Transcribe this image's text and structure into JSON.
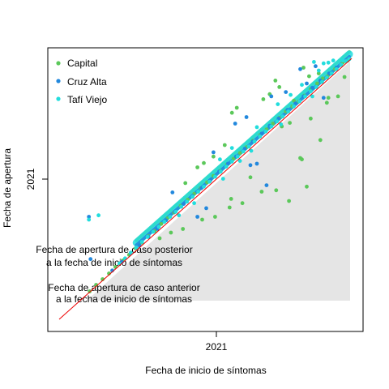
{
  "chart_data": {
    "type": "scatter",
    "title": "",
    "xlabel": "Fecha de inicio de síntomas",
    "ylabel": "Fecha de apertura",
    "x_tick_labels": [
      "2021"
    ],
    "y_tick_labels": [
      "2021"
    ],
    "xlim": [
      "2020-06-01",
      "2021-05-31"
    ],
    "ylim": [
      "2020-06-01",
      "2021-05-31"
    ],
    "x_ticks": [
      "2021-01-01"
    ],
    "y_ticks": [
      "2021-01-01"
    ],
    "legend_position": "top-left",
    "reference_line": {
      "label": "",
      "color": "#ee0000",
      "from": [
        "2020-06-01",
        "2020-06-01"
      ],
      "to": [
        "2021-05-31",
        "2021-05-31"
      ]
    },
    "shaded_region": {
      "color": "#e5e5e5",
      "description_labels": [
        "Fecha de apertura de caso anterior",
        "a la fecha de inicio de síntomas"
      ]
    },
    "annotation_upper": [
      "Fecha de apertura de caso posterior",
      "a la fecha de inicio de síntomas"
    ],
    "series": [
      {
        "name": "Capital",
        "color": "#5bc85a",
        "points": [
          [
            "2021-05-26",
            "2021-05-28"
          ],
          [
            "2021-05-20",
            "2021-05-25"
          ],
          [
            "2021-05-10",
            "2021-05-16"
          ],
          [
            "2021-05-01",
            "2021-05-06"
          ],
          [
            "2021-04-25",
            "2021-05-03"
          ],
          [
            "2021-04-18",
            "2021-04-26"
          ],
          [
            "2021-04-10",
            "2021-04-18"
          ],
          [
            "2021-04-02",
            "2021-04-09"
          ],
          [
            "2021-03-26",
            "2021-04-01"
          ],
          [
            "2021-03-18",
            "2021-03-25"
          ],
          [
            "2021-03-10",
            "2021-03-18"
          ],
          [
            "2021-03-02",
            "2021-03-09"
          ],
          [
            "2021-02-22",
            "2021-03-01"
          ],
          [
            "2021-02-14",
            "2021-02-21"
          ],
          [
            "2021-02-06",
            "2021-02-13"
          ],
          [
            "2021-01-28",
            "2021-02-05"
          ],
          [
            "2021-01-20",
            "2021-01-27"
          ],
          [
            "2021-01-12",
            "2021-01-19"
          ],
          [
            "2021-01-04",
            "2021-01-11"
          ],
          [
            "2020-12-27",
            "2021-01-03"
          ],
          [
            "2020-12-18",
            "2020-12-25"
          ],
          [
            "2020-12-10",
            "2020-12-18"
          ],
          [
            "2020-12-02",
            "2020-12-09"
          ],
          [
            "2020-11-24",
            "2020-12-01"
          ],
          [
            "2020-11-16",
            "2020-11-23"
          ],
          [
            "2020-11-08",
            "2020-11-15"
          ],
          [
            "2020-10-30",
            "2020-11-06"
          ],
          [
            "2020-10-22",
            "2020-10-28"
          ],
          [
            "2020-10-14",
            "2020-10-20"
          ],
          [
            "2020-10-06",
            "2020-10-12"
          ],
          [
            "2020-09-28",
            "2020-10-02"
          ],
          [
            "2020-09-20",
            "2020-09-25"
          ],
          [
            "2020-09-12",
            "2020-09-16"
          ],
          [
            "2020-09-04",
            "2020-09-08"
          ],
          [
            "2020-08-27",
            "2020-08-30"
          ],
          [
            "2020-08-19",
            "2020-08-22"
          ],
          [
            "2020-08-10",
            "2020-08-13"
          ],
          [
            "2020-08-02",
            "2020-08-04"
          ],
          [
            "2020-07-25",
            "2020-07-27"
          ],
          [
            "2020-07-17",
            "2020-07-19"
          ],
          [
            "2020-07-09",
            "2020-07-10"
          ],
          [
            "2021-01-08",
            "2021-03-23"
          ],
          [
            "2021-01-02",
            "2021-03-16"
          ],
          [
            "2021-02-10",
            "2021-04-04"
          ],
          [
            "2021-02-18",
            "2021-04-11"
          ],
          [
            "2021-03-02",
            "2021-04-21"
          ],
          [
            "2021-02-25",
            "2021-04-30"
          ],
          [
            "2021-04-01",
            "2021-05-18"
          ],
          [
            "2021-04-20",
            "2021-05-10"
          ],
          [
            "2021-04-08",
            "2021-05-06"
          ],
          [
            "2020-12-24",
            "2021-01-30"
          ],
          [
            "2020-12-10",
            "2021-01-14"
          ],
          [
            "2020-11-20",
            "2020-12-30"
          ],
          [
            "2021-03-05",
            "2021-02-25"
          ],
          [
            "2021-03-15",
            "2021-03-02"
          ],
          [
            "2021-04-10",
            "2021-03-08"
          ],
          [
            "2021-04-22",
            "2021-02-06"
          ],
          [
            "2021-03-28",
            "2021-01-12"
          ],
          [
            "2021-03-30",
            "2021-01-10"
          ],
          [
            "2021-04-05",
            "2020-12-03"
          ],
          [
            "2021-02-26",
            "2020-11-28"
          ],
          [
            "2021-02-08",
            "2020-11-26"
          ],
          [
            "2021-01-15",
            "2020-11-10"
          ],
          [
            "2020-12-30",
            "2020-11-04"
          ],
          [
            "2020-12-12",
            "2020-10-22"
          ],
          [
            "2020-11-26",
            "2020-10-18"
          ],
          [
            "2021-01-25",
            "2020-12-16"
          ],
          [
            "2021-03-14",
            "2020-11-13"
          ],
          [
            "2021-01-01",
            "2020-11-16"
          ],
          [
            "2020-11-02",
            "2020-10-05"
          ],
          [
            "2020-10-18",
            "2020-09-30"
          ],
          [
            "2020-10-04",
            "2020-09-22"
          ],
          [
            "2021-05-14",
            "2021-04-08"
          ],
          [
            "2021-05-22",
            "2021-05-05"
          ],
          [
            "2021-04-30",
            "2021-03-30"
          ],
          [
            "2021-05-02",
            "2021-04-06"
          ],
          [
            "2021-03-20",
            "2021-04-02"
          ],
          [
            "2020-11-28",
            "2021-01-05"
          ],
          [
            "2020-11-05",
            "2020-12-08"
          ]
        ]
      },
      {
        "name": "Cruz Alta",
        "color": "#2288dd",
        "points": [
          [
            "2021-05-24",
            "2021-05-27"
          ],
          [
            "2021-05-12",
            "2021-05-18"
          ],
          [
            "2021-05-03",
            "2021-05-10"
          ],
          [
            "2021-04-22",
            "2021-04-30"
          ],
          [
            "2021-04-12",
            "2021-04-20"
          ],
          [
            "2021-04-01",
            "2021-04-08"
          ],
          [
            "2021-03-22",
            "2021-03-29"
          ],
          [
            "2021-03-12",
            "2021-03-20"
          ],
          [
            "2021-03-01",
            "2021-03-08"
          ],
          [
            "2021-02-18",
            "2021-02-26"
          ],
          [
            "2021-02-08",
            "2021-02-15"
          ],
          [
            "2021-01-28",
            "2021-02-04"
          ],
          [
            "2021-01-18",
            "2021-01-25"
          ],
          [
            "2021-01-07",
            "2021-01-14"
          ],
          [
            "2020-12-28",
            "2021-01-04"
          ],
          [
            "2020-12-17",
            "2020-12-24"
          ],
          [
            "2020-12-06",
            "2020-12-12"
          ],
          [
            "2020-11-25",
            "2020-12-01"
          ],
          [
            "2020-11-14",
            "2020-11-20"
          ],
          [
            "2020-11-03",
            "2020-11-09"
          ],
          [
            "2020-10-23",
            "2020-10-29"
          ],
          [
            "2020-10-12",
            "2020-10-17"
          ],
          [
            "2020-10-01",
            "2020-10-05"
          ],
          [
            "2020-09-20",
            "2020-09-24"
          ],
          [
            "2020-09-09",
            "2020-09-12"
          ],
          [
            "2020-08-29",
            "2020-09-01"
          ],
          [
            "2020-08-18",
            "2020-08-20"
          ],
          [
            "2020-08-06",
            "2020-08-08"
          ],
          [
            "2021-03-28",
            "2021-05-16"
          ],
          [
            "2021-04-16",
            "2021-05-20"
          ],
          [
            "2021-02-20",
            "2021-04-08"
          ],
          [
            "2020-12-10",
            "2021-01-20"
          ],
          [
            "2021-01-06",
            "2021-03-01"
          ],
          [
            "2020-07-08",
            "2020-10-22"
          ],
          [
            "2020-07-10",
            "2020-08-24"
          ],
          [
            "2020-10-20",
            "2020-11-25"
          ],
          [
            "2021-01-20",
            "2021-03-10"
          ],
          [
            "2021-04-05",
            "2021-04-26"
          ],
          [
            "2021-03-10",
            "2021-04-14"
          ],
          [
            "2021-01-25",
            "2021-01-02"
          ],
          [
            "2021-02-14",
            "2020-12-05"
          ],
          [
            "2020-11-20",
            "2020-10-22"
          ],
          [
            "2020-12-01",
            "2020-11-03"
          ],
          [
            "2021-04-26",
            "2021-04-06"
          ],
          [
            "2021-02-02",
            "2021-01-04"
          ]
        ]
      },
      {
        "name": "Tafí Viejo",
        "color": "#22dddd",
        "points": [
          [
            "2021-05-28",
            "2021-05-30"
          ],
          [
            "2021-05-24",
            "2021-05-27"
          ],
          [
            "2021-05-18",
            "2021-05-22"
          ],
          [
            "2021-05-12",
            "2021-05-16"
          ],
          [
            "2021-05-06",
            "2021-05-10"
          ],
          [
            "2021-04-30",
            "2021-05-04"
          ],
          [
            "2021-04-24",
            "2021-04-28"
          ],
          [
            "2021-04-17",
            "2021-04-21"
          ],
          [
            "2021-04-10",
            "2021-04-15"
          ],
          [
            "2021-04-03",
            "2021-04-08"
          ],
          [
            "2021-03-27",
            "2021-04-01"
          ],
          [
            "2021-03-20",
            "2021-03-25"
          ],
          [
            "2021-03-13",
            "2021-03-18"
          ],
          [
            "2021-03-06",
            "2021-03-11"
          ],
          [
            "2021-02-27",
            "2021-03-04"
          ],
          [
            "2021-02-20",
            "2021-02-25"
          ],
          [
            "2021-02-13",
            "2021-02-18"
          ],
          [
            "2021-02-06",
            "2021-02-11"
          ],
          [
            "2021-01-30",
            "2021-02-04"
          ],
          [
            "2021-01-23",
            "2021-01-28"
          ],
          [
            "2021-01-16",
            "2021-01-21"
          ],
          [
            "2021-01-09",
            "2021-01-14"
          ],
          [
            "2021-01-02",
            "2021-01-07"
          ],
          [
            "2020-12-26",
            "2020-12-31"
          ],
          [
            "2020-12-19",
            "2020-12-24"
          ],
          [
            "2020-12-12",
            "2020-12-17"
          ],
          [
            "2020-12-05",
            "2020-12-10"
          ],
          [
            "2020-11-28",
            "2020-12-03"
          ],
          [
            "2020-11-21",
            "2020-11-26"
          ],
          [
            "2020-11-14",
            "2020-11-19"
          ],
          [
            "2020-11-07",
            "2020-11-12"
          ],
          [
            "2020-10-31",
            "2020-11-05"
          ],
          [
            "2020-10-24",
            "2020-10-29"
          ],
          [
            "2020-10-17",
            "2020-10-22"
          ],
          [
            "2020-10-10",
            "2020-10-15"
          ],
          [
            "2020-10-03",
            "2020-10-08"
          ],
          [
            "2020-09-26",
            "2020-10-01"
          ],
          [
            "2020-09-19",
            "2020-09-24"
          ],
          [
            "2020-09-12",
            "2020-09-17"
          ],
          [
            "2020-09-05",
            "2020-09-09"
          ],
          [
            "2020-08-29",
            "2020-09-02"
          ],
          [
            "2020-08-22",
            "2020-08-25"
          ],
          [
            "2020-08-15",
            "2020-08-18"
          ],
          [
            "2021-05-20",
            "2021-05-28"
          ],
          [
            "2021-05-08",
            "2021-05-28"
          ],
          [
            "2021-04-26",
            "2021-05-24"
          ],
          [
            "2021-04-14",
            "2021-05-26"
          ],
          [
            "2021-05-02",
            "2021-05-25"
          ],
          [
            "2021-04-20",
            "2021-05-14"
          ],
          [
            "2021-03-30",
            "2021-04-24"
          ],
          [
            "2021-03-16",
            "2021-04-10"
          ],
          [
            "2021-02-28",
            "2021-03-28"
          ],
          [
            "2020-07-08",
            "2020-10-18"
          ],
          [
            "2020-07-20",
            "2020-10-24"
          ],
          [
            "2021-01-02",
            "2021-01-26"
          ],
          [
            "2020-12-18",
            "2021-01-10"
          ],
          [
            "2021-02-02",
            "2021-02-24"
          ],
          [
            "2021-01-12",
            "2021-01-08"
          ],
          [
            "2020-12-22",
            "2020-12-14"
          ],
          [
            "2021-03-04",
            "2021-02-28"
          ],
          [
            "2020-10-28",
            "2020-10-24"
          ],
          [
            "2020-11-16",
            "2020-11-10"
          ],
          [
            "2021-04-12",
            "2021-04-08"
          ],
          [
            "2021-01-26",
            "2021-01-22"
          ]
        ]
      }
    ]
  }
}
